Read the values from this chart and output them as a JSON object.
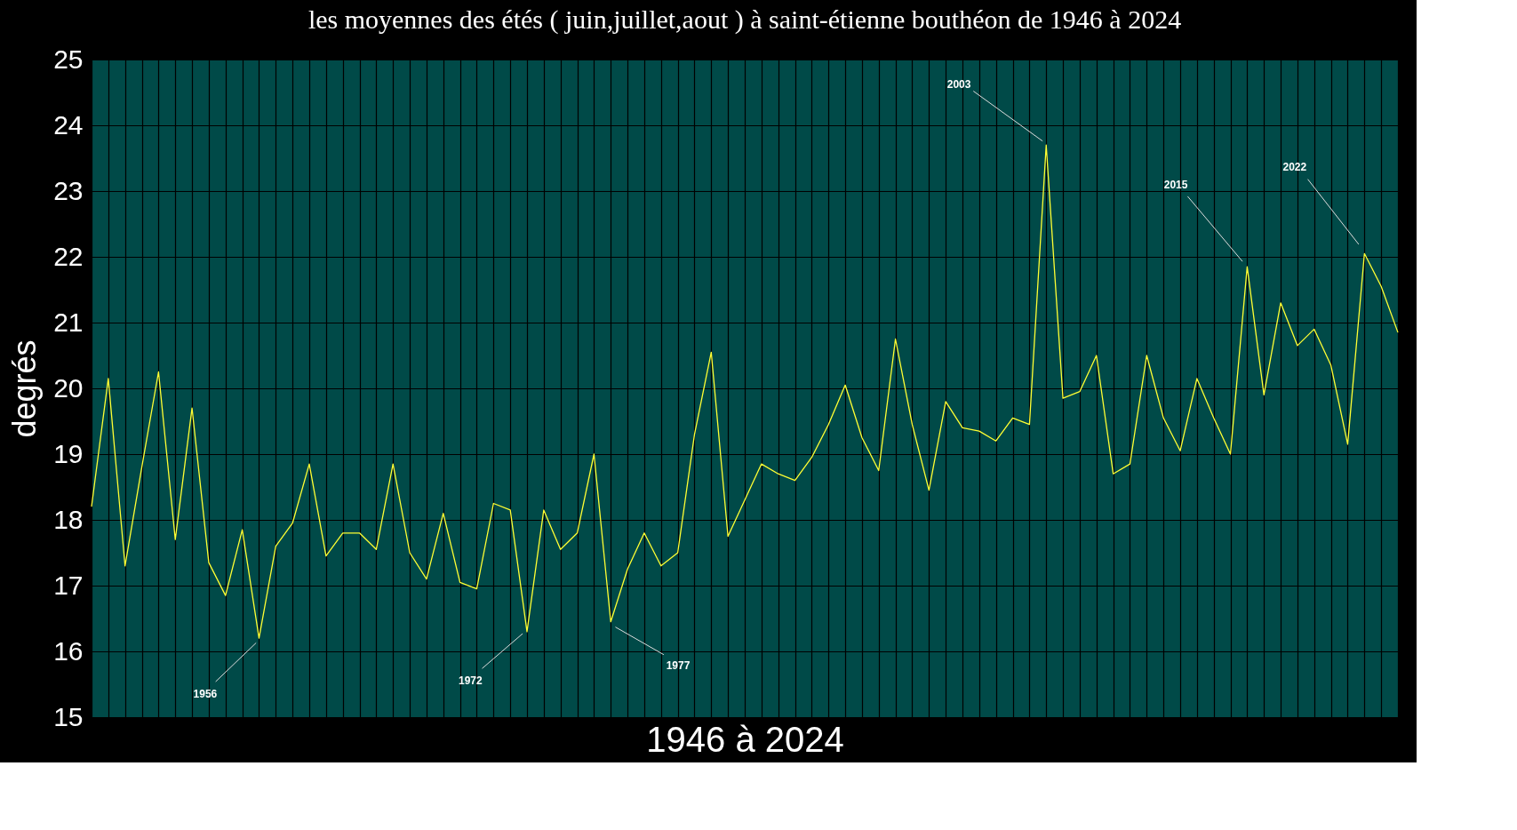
{
  "chart_data": {
    "type": "line",
    "title": "les moyennes des étés ( juin,juillet,aout ) à saint-étienne bouthéon de 1946 à 2024",
    "xlabel": "1946  à  2024",
    "ylabel": "degrés",
    "categories": [
      null,
      null,
      null,
      null,
      null,
      null,
      null,
      null,
      null,
      null,
      null,
      null,
      null,
      null,
      null,
      null,
      null,
      null,
      null,
      null,
      null,
      null,
      null,
      null,
      null,
      null,
      null,
      null,
      null,
      null,
      null,
      null,
      null,
      null,
      null,
      null,
      null,
      null,
      null,
      null,
      null,
      null,
      null,
      null,
      null,
      null,
      null,
      null,
      null,
      null,
      null,
      null,
      null,
      null,
      null,
      null,
      null,
      null,
      null,
      null,
      null,
      null,
      null,
      null,
      null,
      null,
      null,
      null,
      null,
      null,
      null,
      null,
      null,
      null,
      null,
      null,
      null,
      null,
      null
    ],
    "series": [
      {
        "color": "#ffff33",
        "values": [
          18.2,
          20.15,
          17.3,
          18.8,
          20.25,
          17.7,
          19.7,
          17.35,
          16.85,
          17.85,
          16.2,
          17.6,
          17.95,
          18.85,
          17.45,
          17.8,
          17.8,
          17.55,
          18.85,
          17.5,
          17.1,
          18.1,
          17.05,
          16.95,
          18.25,
          18.15,
          16.3,
          18.15,
          17.55,
          17.8,
          19.0,
          16.45,
          17.25,
          17.8,
          17.3,
          17.5,
          19.3,
          20.55,
          17.75,
          18.3,
          18.85,
          18.7,
          18.6,
          18.95,
          19.45,
          20.05,
          19.25,
          18.75,
          20.75,
          19.45,
          18.45,
          19.8,
          19.4,
          19.35,
          19.2,
          19.55,
          19.45,
          23.7,
          19.85,
          19.95,
          20.5,
          18.7,
          18.85,
          20.5,
          19.55,
          19.05,
          20.15,
          19.55,
          19.0,
          21.85,
          19.9,
          21.3,
          20.65,
          20.9,
          20.35,
          19.15,
          22.05,
          21.55,
          20.85
        ]
      }
    ],
    "ylim": [
      15,
      25
    ],
    "yticks": [
      15,
      16,
      17,
      18,
      19,
      20,
      21,
      22,
      23,
      24,
      25
    ],
    "grid": true,
    "tick_labels": "y",
    "marker": "none",
    "line_style": "solid",
    "annotations": [
      "1956",
      "1972",
      "1977",
      "2003",
      "2015",
      "2022"
    ]
  }
}
